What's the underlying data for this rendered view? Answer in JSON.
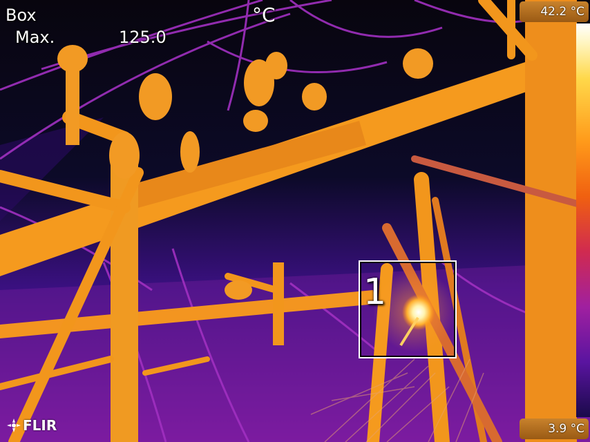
{
  "overlay": {
    "mode_label": "Box",
    "measure_label": "Max.",
    "measure_value": "125.0",
    "unit": "°C"
  },
  "scale": {
    "max_temp": "42.2 °C",
    "min_temp": "3.9 °C",
    "colors": [
      "#ffffff",
      "#ffd84a",
      "#ff9a1a",
      "#d02a50",
      "#5a14a0",
      "#1a0a4a"
    ]
  },
  "roi": {
    "number": "1"
  },
  "brand": {
    "logo_text": "FLIR"
  }
}
